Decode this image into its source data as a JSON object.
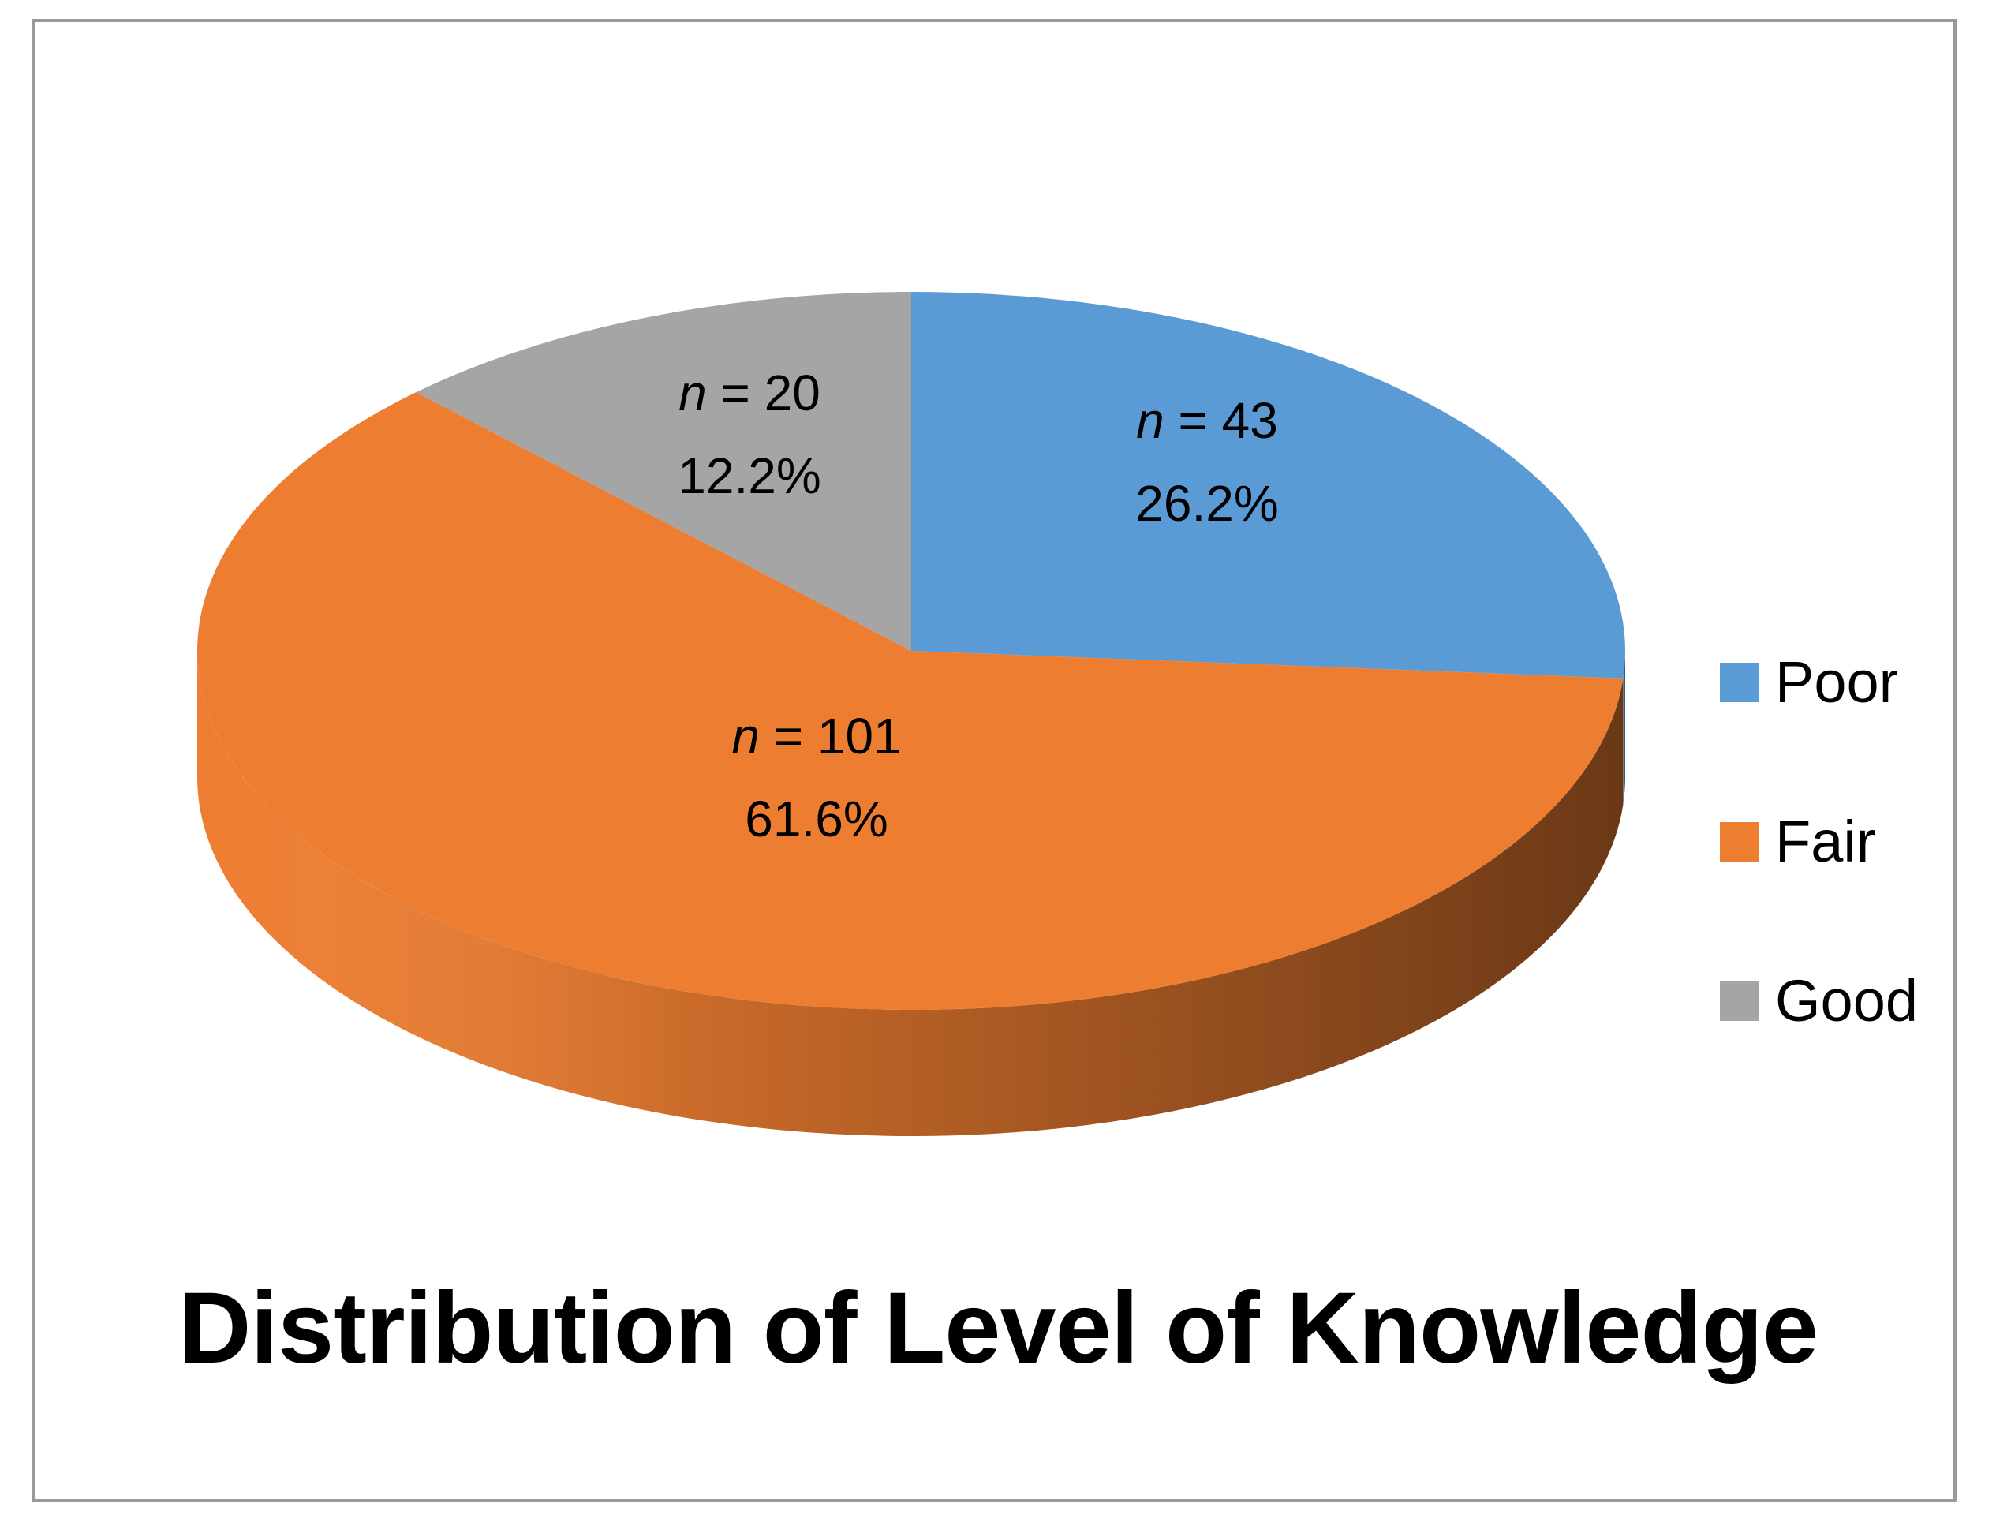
{
  "chart_data": {
    "type": "pie",
    "title": "Distribution of Level of Knowledge",
    "categories": [
      "Poor",
      "Fair",
      "Good"
    ],
    "values": [
      43,
      101,
      20
    ],
    "percentages": [
      "26.2%",
      "61.6%",
      "12.2%"
    ],
    "count_labels": [
      "n = 43",
      "n = 101",
      "n = 20"
    ],
    "colors": [
      "#5B9BD5",
      "#ED7D31",
      "#A5A5A5"
    ],
    "side_colors": [
      "#3F76A8",
      "#B85E20",
      "#7F7F7F"
    ],
    "legend": "right",
    "style": "3d"
  }
}
